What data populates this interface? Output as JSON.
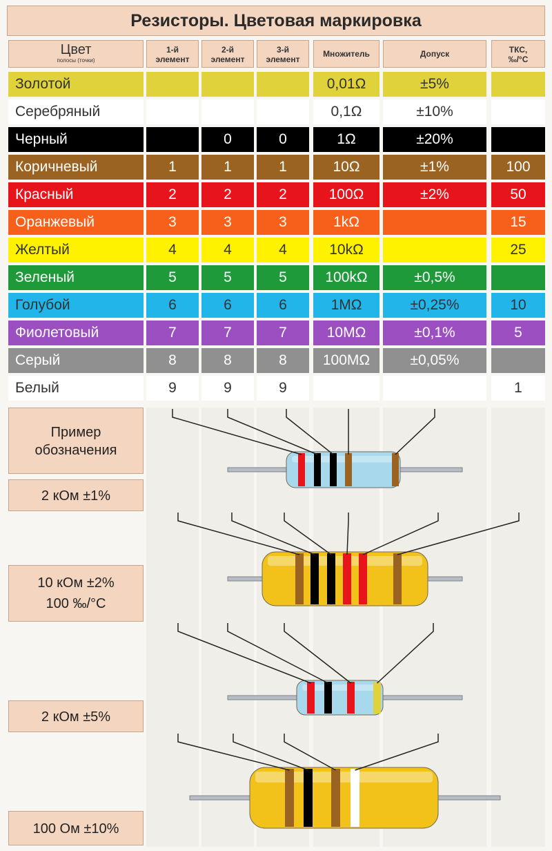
{
  "title": "Резисторы. Цветовая маркировка",
  "headers": [
    {
      "a": "Цвет",
      "b": "полосы (точки)"
    },
    {
      "a": "1-й",
      "b": "элемент"
    },
    {
      "a": "2-й",
      "b": "элемент"
    },
    {
      "a": "3-й",
      "b": "элемент"
    },
    {
      "a": "Множитель",
      "b": ""
    },
    {
      "a": "Допуск",
      "b": ""
    },
    {
      "a": "ТКС,",
      "b": "‰/°C"
    }
  ],
  "rows": [
    {
      "name": "Золотой",
      "bg": "#e0d23a",
      "fg": "#333333",
      "d1": "",
      "d2": "",
      "d3": "",
      "mult": "0,01Ω",
      "tol": "±5%",
      "tks": ""
    },
    {
      "name": "Серебряный",
      "bg": "#ffffff",
      "fg": "#333333",
      "d1": "",
      "d2": "",
      "d3": "",
      "mult": "0,1Ω",
      "tol": "±10%",
      "tks": ""
    },
    {
      "name": "Черный",
      "bg": "#000000",
      "fg": "#ffffff",
      "d1": "",
      "d2": "0",
      "d3": "0",
      "mult": "1Ω",
      "tol": "±20%",
      "tks": ""
    },
    {
      "name": "Коричневый",
      "bg": "#9a6322",
      "fg": "#ffffff",
      "d1": "1",
      "d2": "1",
      "d3": "1",
      "mult": "10Ω",
      "tol": "±1%",
      "tks": "100"
    },
    {
      "name": "Красный",
      "bg": "#e8141c",
      "fg": "#ffffff",
      "d1": "2",
      "d2": "2",
      "d3": "2",
      "mult": "100Ω",
      "tol": "±2%",
      "tks": "50"
    },
    {
      "name": "Оранжевый",
      "bg": "#f7601a",
      "fg": "#ffffff",
      "d1": "3",
      "d2": "3",
      "d3": "3",
      "mult": "1kΩ",
      "tol": "",
      "tks": "15"
    },
    {
      "name": "Желтый",
      "bg": "#fff200",
      "fg": "#333333",
      "d1": "4",
      "d2": "4",
      "d3": "4",
      "mult": "10kΩ",
      "tol": "",
      "tks": "25"
    },
    {
      "name": "Зеленый",
      "bg": "#1f9a3a",
      "fg": "#ffffff",
      "d1": "5",
      "d2": "5",
      "d3": "5",
      "mult": "100kΩ",
      "tol": "±0,5%",
      "tks": ""
    },
    {
      "name": "Голубой",
      "bg": "#22b5ea",
      "fg": "#333333",
      "d1": "6",
      "d2": "6",
      "d3": "6",
      "mult": "1MΩ",
      "tol": "±0,25%",
      "tks": "10"
    },
    {
      "name": "Фиолетовый",
      "bg": "#9c4fc0",
      "fg": "#ffffff",
      "d1": "7",
      "d2": "7",
      "d3": "7",
      "mult": "10MΩ",
      "tol": "±0,1%",
      "tks": "5"
    },
    {
      "name": "Серый",
      "bg": "#909090",
      "fg": "#ffffff",
      "d1": "8",
      "d2": "8",
      "d3": "8",
      "mult": "100MΩ",
      "tol": "±0,05%",
      "tks": ""
    },
    {
      "name": "Белый",
      "bg": "#ffffff",
      "fg": "#333333",
      "d1": "9",
      "d2": "9",
      "d3": "9",
      "mult": "",
      "tol": "",
      "tks": "1"
    }
  ],
  "examples": {
    "heading": "Пример обозначения",
    "ex1": "2 кОм ±1%",
    "ex2_line1": "10 кОм ±2%",
    "ex2_line2": "100 ‰/°C",
    "ex3": "2 кОм ±5%",
    "ex4": "100 Ом ±10%"
  },
  "resistors": [
    {
      "body": "#a8d8ec",
      "bands": [
        "#e8141c",
        "#000000",
        "#000000",
        "#9a6322",
        "#9a6322"
      ]
    },
    {
      "body": "#f2c21a",
      "bands": [
        "#9a6322",
        "#000000",
        "#000000",
        "#e8141c",
        "#e8141c",
        "#9a6322"
      ]
    },
    {
      "body": "#a8d8ec",
      "bands": [
        "#e8141c",
        "#000000",
        "#e8141c",
        "#e0d23a"
      ]
    },
    {
      "body": "#f2c21a",
      "bands": [
        "#9a6322",
        "#000000",
        "#9a6322",
        "#ffffff"
      ]
    }
  ]
}
